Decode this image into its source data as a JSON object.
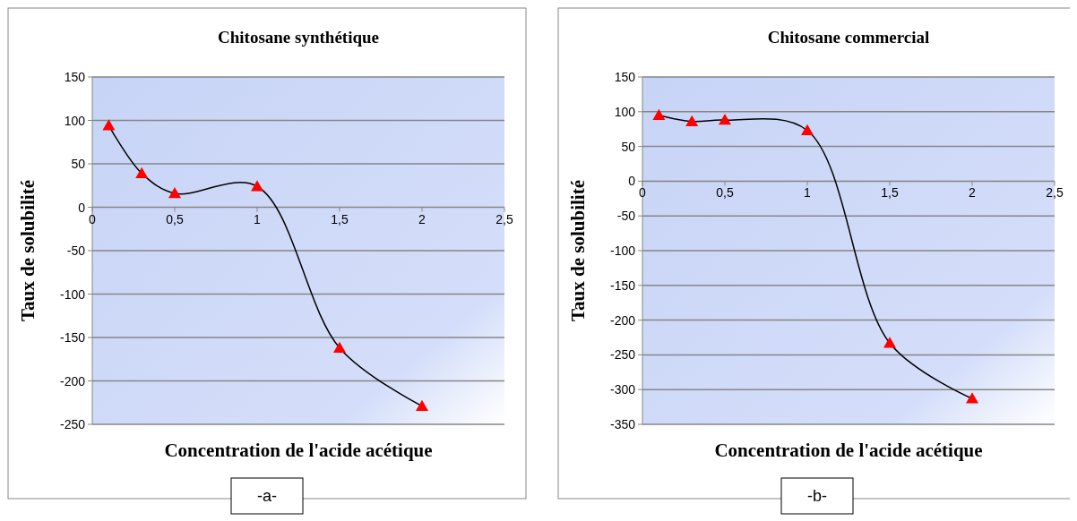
{
  "chart_data": [
    {
      "type": "line",
      "title": "Chitosane synthétique",
      "xlabel": "Concentration de l'acide acétique",
      "ylabel": "Taux de solubilité",
      "annotations": [
        "-a-"
      ],
      "x": [
        0.1,
        0.3,
        0.5,
        1,
        1.5,
        2
      ],
      "series": [
        {
          "color": "#ff0000",
          "values": [
            94,
            39,
            16,
            24,
            -162,
            -229
          ]
        }
      ],
      "xlim": [
        0,
        2.5
      ],
      "xticks": [
        0,
        {
          "value": 0.5,
          "label": "0,5"
        },
        1,
        {
          "value": 1.5,
          "label": "1,5"
        },
        2,
        {
          "value": 2.5,
          "label": "2,5"
        }
      ],
      "ylim": [
        -250,
        150
      ],
      "yticks": [
        -250,
        -200,
        -150,
        -100,
        -50,
        0,
        50,
        100,
        150
      ],
      "grid": "y",
      "marker": "triangle"
    },
    {
      "type": "line",
      "title": "Chitosane commercial",
      "xlabel": "Concentration de l'acide acétique",
      "ylabel": "Taux de solubilité",
      "annotations": [
        "-b-"
      ],
      "x": [
        0.1,
        0.3,
        0.5,
        1,
        1.5,
        2
      ],
      "series": [
        {
          "color": "#ff0000",
          "values": [
            95,
            86,
            88,
            73,
            -233,
            -313
          ]
        }
      ],
      "xlim": [
        0,
        2.5
      ],
      "xticks": [
        0,
        {
          "value": 0.5,
          "label": "0,5"
        },
        1,
        {
          "value": 1.5,
          "label": "1,5"
        },
        2,
        {
          "value": 2.5,
          "label": "2,5"
        }
      ],
      "ylim": [
        -350,
        150
      ],
      "yticks": [
        -350,
        -300,
        -250,
        -200,
        -150,
        -100,
        -50,
        0,
        50,
        100,
        150
      ],
      "grid": "y",
      "marker": "triangle"
    }
  ]
}
